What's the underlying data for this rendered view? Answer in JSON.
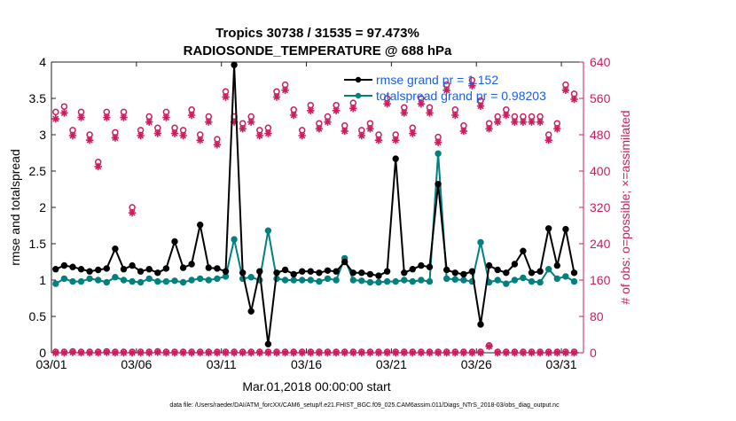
{
  "chart_data": {
    "type": "line",
    "title_line1": "Tropics 30738 / 31535 = 97.473%",
    "title_line2": "RADIOSONDE_TEMPERATURE @ 688 hPa",
    "xlabel": "Mar.01,2018 00:00:00 start",
    "ylabel_left": "rmse and totalspread",
    "ylabel_right": "# of obs: o=possible; ×=assimilated",
    "footer": "data file: /Users/raeder/DAI/ATM_forcXX/CAM6_setup/f.e21.FHIST_BGC.f09_025.CAM6assim.011/Diags_NTrS_2018-03/obs_diag_output.nc",
    "xlim": [
      1.0,
      32.3
    ],
    "ylim_left": [
      0,
      4
    ],
    "ylim_right": [
      0,
      640
    ],
    "x_ticks": [
      1,
      6,
      11,
      16,
      21,
      26,
      31
    ],
    "x_tick_labels": [
      "03/01",
      "03/06",
      "03/11",
      "03/16",
      "03/21",
      "03/26",
      "03/31"
    ],
    "y_left_ticks": [
      "0",
      "0.5",
      "1",
      "1.5",
      "2",
      "2.5",
      "3",
      "3.5",
      "4"
    ],
    "y_right_ticks": [
      "0",
      "80",
      "160",
      "240",
      "320",
      "400",
      "480",
      "560",
      "640"
    ],
    "colors": {
      "rmse": "#000000",
      "totalspread": "#00807f",
      "obs": "#cc1c5e",
      "legend_text": "#1a5ee8"
    },
    "legend": {
      "rmse": "rmse grand pr = 1.152",
      "totalspread": "totalspread grand pr = 0.98203"
    },
    "x": [
      1.25,
      1.75,
      2.25,
      2.75,
      3.25,
      3.75,
      4.25,
      4.75,
      5.25,
      5.75,
      6.25,
      6.75,
      7.25,
      7.75,
      8.25,
      8.75,
      9.25,
      9.75,
      10.25,
      10.75,
      11.25,
      11.75,
      12.25,
      12.75,
      13.25,
      13.75,
      14.25,
      14.75,
      15.25,
      15.75,
      16.25,
      16.75,
      17.25,
      17.75,
      18.25,
      18.75,
      19.25,
      19.75,
      20.25,
      20.75,
      21.25,
      21.75,
      22.25,
      22.75,
      23.25,
      23.75,
      24.25,
      24.75,
      25.25,
      25.75,
      26.25,
      26.75,
      27.25,
      27.75,
      28.25,
      28.75,
      29.25,
      29.75,
      30.25,
      30.75,
      31.25,
      31.75
    ],
    "series": [
      {
        "name": "rmse",
        "values": [
          1.15,
          1.2,
          1.18,
          1.15,
          1.12,
          1.14,
          1.16,
          1.43,
          1.15,
          1.2,
          1.12,
          1.15,
          1.1,
          1.16,
          1.53,
          1.17,
          1.22,
          1.76,
          1.17,
          1.16,
          1.12,
          3.96,
          1.1,
          0.57,
          1.12,
          0.12,
          1.1,
          1.14,
          1.08,
          1.12,
          1.12,
          1.1,
          1.13,
          1.12,
          1.25,
          1.1,
          1.1,
          1.08,
          1.06,
          1.12,
          2.67,
          1.1,
          1.15,
          1.2,
          1.18,
          2.32,
          1.14,
          1.1,
          1.08,
          1.12,
          0.39,
          1.2,
          1.14,
          1.1,
          1.22,
          1.4,
          1.1,
          1.12,
          1.71,
          1.2,
          1.7,
          1.1
        ]
      },
      {
        "name": "totalspread",
        "values": [
          0.95,
          1.02,
          0.98,
          0.98,
          1.02,
          1.0,
          0.97,
          1.04,
          1.0,
          0.98,
          0.97,
          1.02,
          0.98,
          0.98,
          0.99,
          0.97,
          1.0,
          1.02,
          1.0,
          1.02,
          1.05,
          1.56,
          1.02,
          1.04,
          1.0,
          1.68,
          1.02,
          1.0,
          1.0,
          1.0,
          1.0,
          0.98,
          1.02,
          1.0,
          1.3,
          1.0,
          0.99,
          0.97,
          0.97,
          0.98,
          0.98,
          1.0,
          0.98,
          1.0,
          0.98,
          2.74,
          1.02,
          1.01,
          1.0,
          0.98,
          1.52,
          0.97,
          1.0,
          0.95,
          1.0,
          1.03,
          0.98,
          0.97,
          1.15,
          1.02,
          1.05,
          0.98
        ]
      },
      {
        "name": "obs_possible",
        "values": [
          530,
          542,
          490,
          530,
          480,
          420,
          530,
          485,
          530,
          320,
          490,
          520,
          495,
          530,
          495,
          490,
          535,
          480,
          520,
          470,
          575,
          520,
          505,
          520,
          490,
          495,
          575,
          590,
          535,
          490,
          545,
          505,
          520,
          545,
          500,
          550,
          490,
          505,
          480,
          560,
          480,
          540,
          495,
          560,
          540,
          475,
          590,
          535,
          500,
          600,
          555,
          505,
          520,
          535,
          520,
          520,
          520,
          520,
          480,
          505,
          590,
          570
        ]
      },
      {
        "name": "obs_assimilated",
        "values": [
          515,
          528,
          478,
          518,
          468,
          410,
          518,
          473,
          518,
          308,
          478,
          508,
          483,
          518,
          483,
          478,
          523,
          468,
          508,
          458,
          563,
          508,
          493,
          508,
          478,
          483,
          563,
          578,
          523,
          478,
          533,
          493,
          508,
          533,
          488,
          538,
          478,
          493,
          468,
          548,
          468,
          528,
          483,
          548,
          528,
          463,
          578,
          523,
          488,
          588,
          543,
          493,
          508,
          523,
          508,
          508,
          508,
          508,
          468,
          493,
          578,
          558
        ]
      },
      {
        "name": "obs_rejected_possible",
        "values": [
          2,
          2,
          3,
          2,
          2,
          2,
          3,
          2,
          2,
          2,
          2,
          2,
          3,
          2,
          2,
          2,
          2,
          2,
          2,
          2,
          2,
          2,
          2,
          2,
          2,
          2,
          2,
          2,
          2,
          2,
          2,
          2,
          2,
          2,
          2,
          2,
          2,
          2,
          2,
          2,
          2,
          2,
          2,
          2,
          2,
          2,
          2,
          2,
          2,
          2,
          2,
          16,
          2,
          2,
          2,
          2,
          2,
          2,
          2,
          2,
          2,
          2
        ]
      }
    ]
  }
}
